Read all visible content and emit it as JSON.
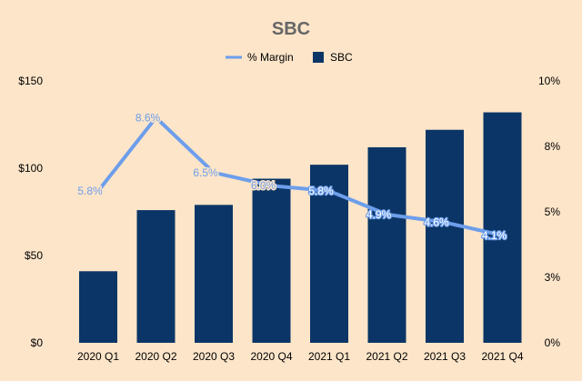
{
  "chart_data": {
    "type": "bar",
    "title": "SBC",
    "categories": [
      "2020 Q1",
      "2020 Q2",
      "2020 Q3",
      "2020 Q4",
      "2021 Q1",
      "2021 Q2",
      "2021 Q3",
      "2021 Q4"
    ],
    "series": [
      {
        "name": "SBC",
        "type": "bar",
        "axis": "left",
        "values": [
          41,
          76,
          79,
          94,
          102,
          112,
          122,
          132
        ]
      },
      {
        "name": "% Margin",
        "type": "line",
        "axis": "right",
        "values": [
          5.8,
          8.6,
          6.5,
          6.0,
          5.8,
          4.9,
          4.6,
          4.1
        ],
        "labels": [
          "5.8%",
          "8.6%",
          "6.5%",
          "6.0%",
          "5.8%",
          "4.9%",
          "4.6%",
          "4.1%"
        ]
      }
    ],
    "y_left": {
      "range": [
        0,
        150
      ],
      "ticks": [
        "$0",
        "$50",
        "$100",
        "$150"
      ]
    },
    "y_right": {
      "range": [
        0,
        10
      ],
      "ticks": [
        "0%",
        "3%",
        "5%",
        "8%",
        "10%"
      ]
    },
    "legend": {
      "position": "top",
      "items": [
        "% Margin",
        "SBC"
      ]
    },
    "grid": false,
    "colors": {
      "background": "#fde5c9",
      "bar": "#0b3566",
      "line": "#6d9eeb",
      "title": "#666666",
      "line_label_before_4": "#6d9eeb",
      "line_label_from_4": "#ffffff"
    }
  }
}
